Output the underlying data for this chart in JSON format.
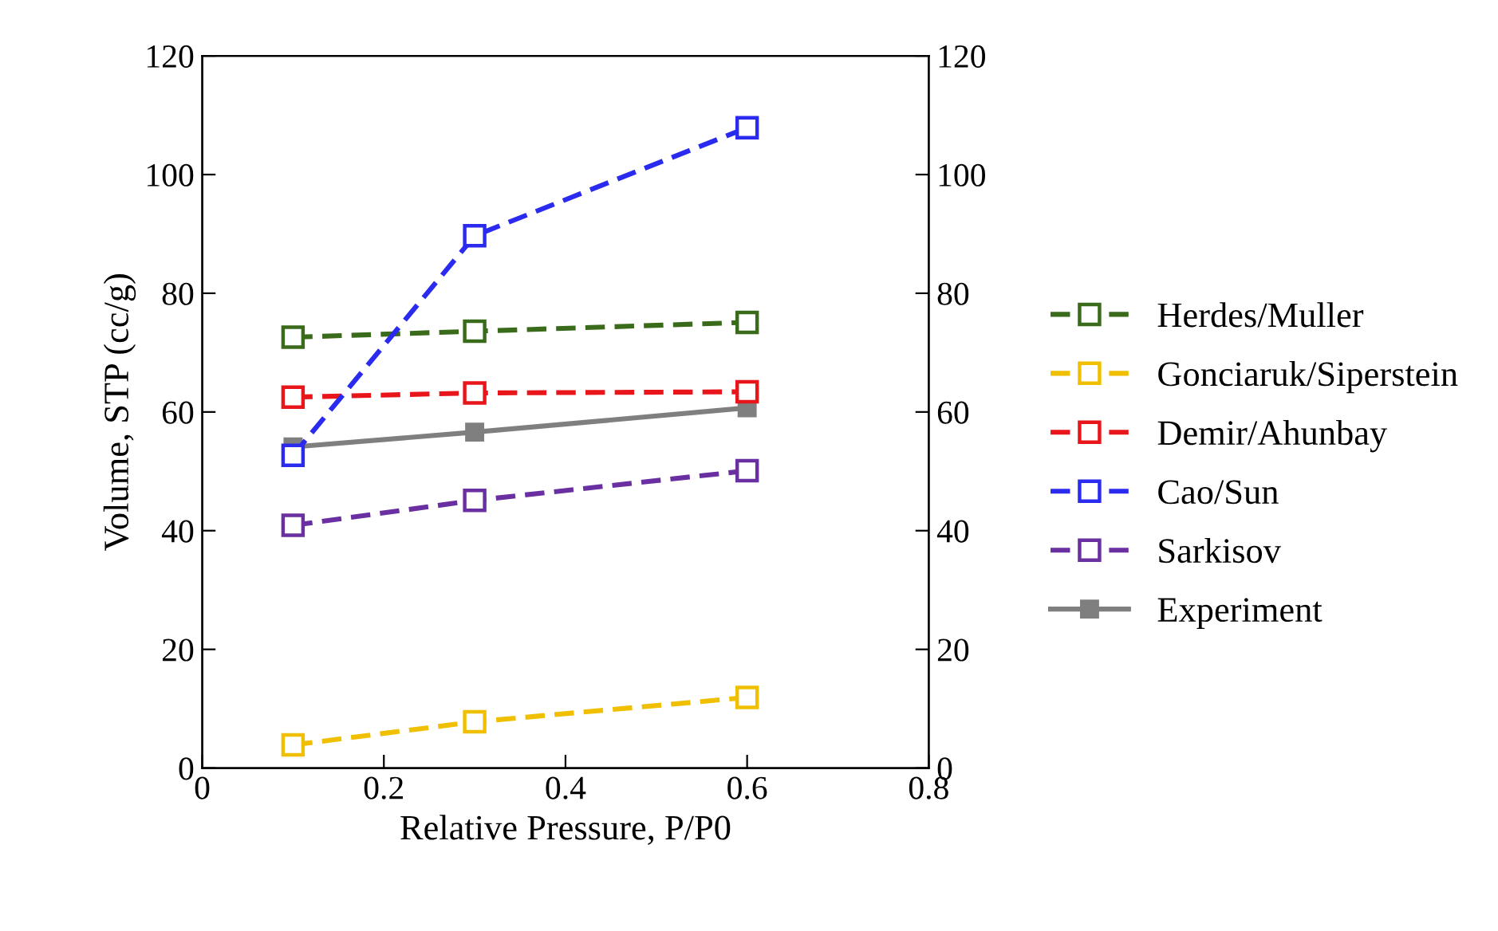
{
  "chart_data": {
    "type": "line",
    "xlabel": "Relative Pressure, P/P0",
    "ylabel": "Volume, STP (cc/g)",
    "x": [
      0.1,
      0.3,
      0.6
    ],
    "series": [
      {
        "name": "Herdes/Muller",
        "color": "#3a6b1a",
        "values": [
          72.6,
          73.6,
          75.1
        ],
        "line_style": "dashed"
      },
      {
        "name": "Gonciaruk/Siperstein",
        "color": "#f0c000",
        "values": [
          3.9,
          7.8,
          11.9
        ],
        "line_style": "dashed"
      },
      {
        "name": "Demir/Ahunbay",
        "color": "#e8161b",
        "values": [
          62.5,
          63.2,
          63.4
        ],
        "line_style": "dashed"
      },
      {
        "name": "Cao/Sun",
        "color": "#2b2bf0",
        "values": [
          52.7,
          89.7,
          107.9
        ],
        "line_style": "dashed"
      },
      {
        "name": "Sarkisov",
        "color": "#6a2fa0",
        "values": [
          40.9,
          45.1,
          50.1
        ],
        "line_style": "dashed"
      },
      {
        "name": "Experiment",
        "color": "#7f7f7f",
        "values": [
          54.1,
          56.6,
          60.7
        ],
        "line_style": "solid"
      }
    ],
    "marker": "square",
    "xlim": [
      0,
      0.8
    ],
    "xticks": [
      0,
      0.2,
      0.4,
      0.6,
      0.8
    ],
    "ylim": [
      0,
      120
    ],
    "yticks": [
      0,
      20,
      40,
      60,
      80,
      100,
      120
    ],
    "y2lim": [
      0,
      120
    ],
    "y2ticks": [
      0,
      20,
      40,
      60,
      80,
      100,
      120
    ],
    "grid": false,
    "legend": "right"
  }
}
